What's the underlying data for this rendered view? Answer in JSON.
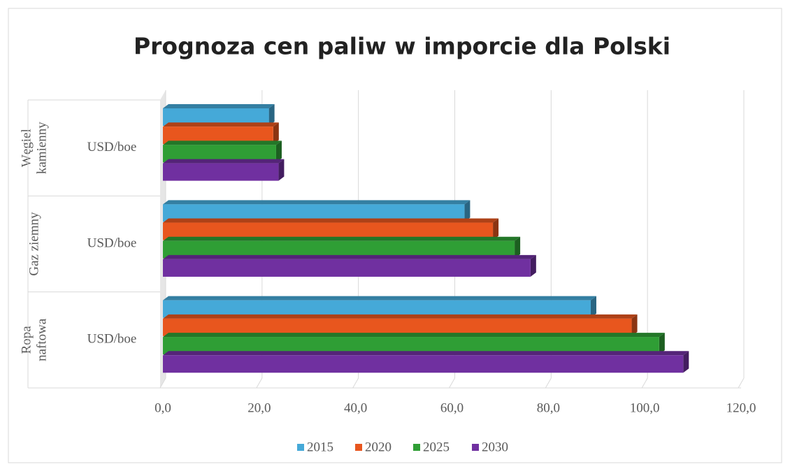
{
  "chart_data": {
    "type": "bar",
    "orientation": "horizontal",
    "title": "Prognoza cen paliw w imporcie dla Polski",
    "groups": [
      [
        "Węgiel",
        "kamienny"
      ],
      [
        "Gaz ziemny"
      ],
      [
        "Ropa",
        "naftowa"
      ]
    ],
    "categories": [
      "USD/boe",
      "USD/boe",
      "USD/boe"
    ],
    "series": [
      {
        "name": "2015",
        "color": "#45a9d8",
        "values": [
          22,
          62.6,
          88.8
        ]
      },
      {
        "name": "2020",
        "color": "#e8561e",
        "values": [
          22.9,
          68.5,
          97.3
        ]
      },
      {
        "name": "2025",
        "color": "#2f9e35",
        "values": [
          23.5,
          73,
          103
        ]
      },
      {
        "name": "2030",
        "color": "#7030a0",
        "values": [
          24,
          76.3,
          108
        ]
      }
    ],
    "xlim": [
      0,
      120
    ],
    "xticks": [
      {
        "value": 0,
        "label": "0,0"
      },
      {
        "value": 20,
        "label": "20,0"
      },
      {
        "value": 40,
        "label": "40,0"
      },
      {
        "value": 60,
        "label": "60,0"
      },
      {
        "value": 80,
        "label": "80,0"
      },
      {
        "value": 100,
        "label": "100,0"
      },
      {
        "value": 120,
        "label": "120,0"
      }
    ],
    "grid": true,
    "legend": "bottom"
  }
}
